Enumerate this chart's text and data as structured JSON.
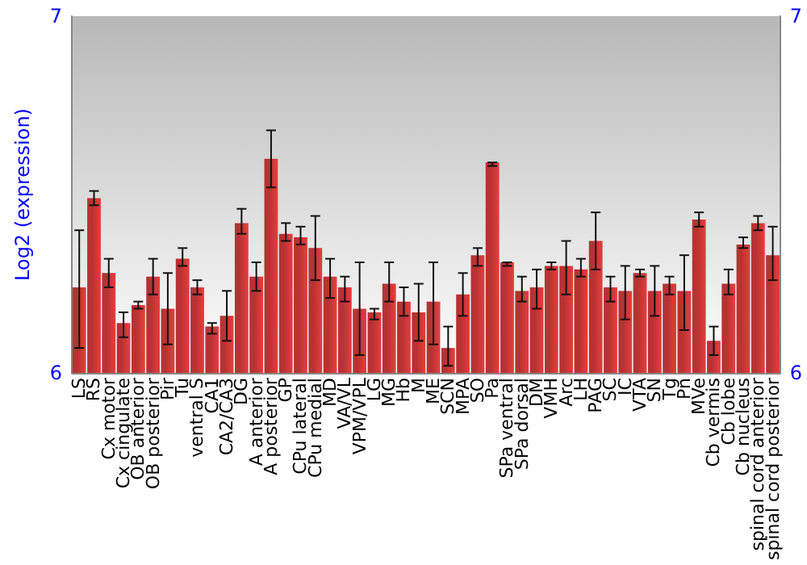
{
  "chart_data": {
    "type": "bar",
    "ylabel": "Log2 (expression)",
    "categories": [
      "LS",
      "RS",
      "Cx motor",
      "Cx cingulate",
      "OB anterior",
      "OB posterior",
      "Pir",
      "Tu",
      "ventral S",
      "CA1",
      "CA2/CA3",
      "DG",
      "A anterior",
      "A posterior",
      "GP",
      "CPu lateral",
      "CPu medial",
      "MD",
      "VA/VL",
      "VPM/VPL",
      "LG",
      "MG",
      "Hb",
      "M",
      "ME",
      "SCN",
      "MPA",
      "SO",
      "Pa",
      "SPa ventral",
      "SPa dorsal",
      "DM",
      "VMH",
      "Arc",
      "LH",
      "PAG",
      "SC",
      "IC",
      "VTA",
      "SN",
      "Tg",
      "Pn",
      "MVe",
      "Cb vermis",
      "Cb lobe",
      "Cb nucleus",
      "spinal cord anterior",
      "spinal cord posterior"
    ],
    "series": [
      {
        "color": "#b83232",
        "values": [
          6.24,
          6.49,
          6.28,
          6.14,
          6.19,
          6.27,
          6.18,
          6.32,
          6.24,
          6.13,
          6.16,
          6.42,
          6.27,
          6.6,
          6.39,
          6.38,
          6.35,
          6.27,
          6.24,
          6.18,
          6.17,
          6.25,
          6.2,
          6.17,
          6.2,
          6.07,
          6.22,
          6.33,
          6.59,
          6.31,
          6.23,
          6.24,
          6.3,
          6.3,
          6.29,
          6.37,
          6.24,
          6.23,
          6.28,
          6.23,
          6.25,
          6.23,
          6.43,
          6.09,
          6.25,
          6.36,
          6.42,
          6.33
        ],
        "errors": [
          [
            6.07,
            6.4
          ],
          [
            6.47,
            6.51
          ],
          [
            6.24,
            6.32
          ],
          [
            6.1,
            6.17
          ],
          [
            6.18,
            6.2
          ],
          [
            6.22,
            6.32
          ],
          [
            6.08,
            6.28
          ],
          [
            6.3,
            6.35
          ],
          [
            6.22,
            6.26
          ],
          [
            6.11,
            6.14
          ],
          [
            6.09,
            6.23
          ],
          [
            6.39,
            6.46
          ],
          [
            6.23,
            6.31
          ],
          [
            6.52,
            6.68
          ],
          [
            6.37,
            6.42
          ],
          [
            6.36,
            6.41
          ],
          [
            6.26,
            6.44
          ],
          [
            6.21,
            6.32
          ],
          [
            6.2,
            6.27
          ],
          [
            6.05,
            6.31
          ],
          [
            6.15,
            6.18
          ],
          [
            6.2,
            6.31
          ],
          [
            6.16,
            6.24
          ],
          [
            6.09,
            6.25
          ],
          [
            6.08,
            6.31
          ],
          [
            6.02,
            6.13
          ],
          [
            6.16,
            6.28
          ],
          [
            6.3,
            6.35
          ],
          [
            6.58,
            6.59
          ],
          [
            6.3,
            6.31
          ],
          [
            6.2,
            6.27
          ],
          [
            6.18,
            6.29
          ],
          [
            6.29,
            6.31
          ],
          [
            6.22,
            6.37
          ],
          [
            6.27,
            6.32
          ],
          [
            6.29,
            6.45
          ],
          [
            6.2,
            6.27
          ],
          [
            6.15,
            6.3
          ],
          [
            6.27,
            6.29
          ],
          [
            6.16,
            6.3
          ],
          [
            6.22,
            6.27
          ],
          [
            6.12,
            6.33
          ],
          [
            6.41,
            6.45
          ],
          [
            6.05,
            6.13
          ],
          [
            6.22,
            6.29
          ],
          [
            6.35,
            6.38
          ],
          [
            6.4,
            6.44
          ],
          [
            6.26,
            6.41
          ]
        ]
      }
    ],
    "ylim": [
      6,
      7
    ],
    "yticks": [
      6,
      7
    ],
    "y2lim": [
      6,
      7
    ],
    "y2ticks": [
      6,
      7
    ]
  }
}
